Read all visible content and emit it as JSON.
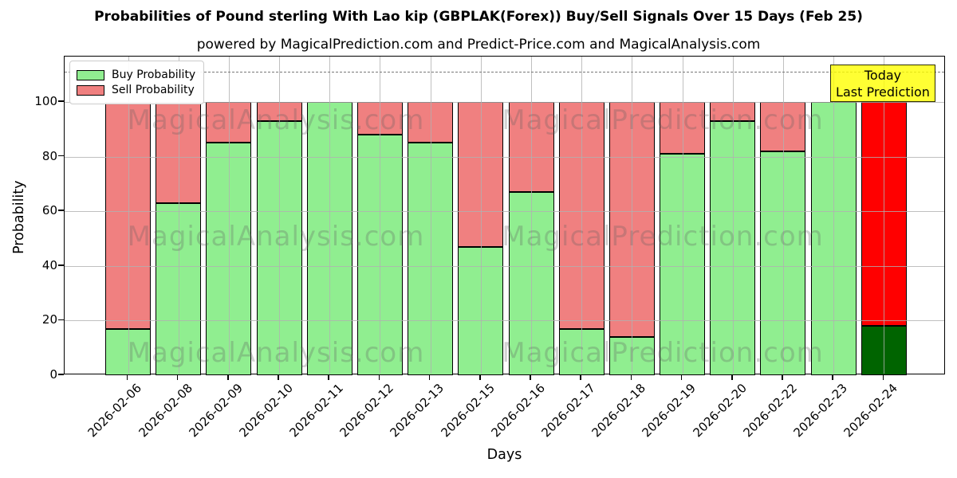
{
  "chart": {
    "title": "Probabilities of Pound sterling With Lao kip (GBPLAK(Forex)) Buy/Sell Signals Over 15 Days (Feb 25)",
    "subtitle": "powered by MagicalPrediction.com and Predict-Price.com and MagicalAnalysis.com",
    "xlabel": "Days",
    "ylabel": "Probability"
  },
  "legend": {
    "items": [
      {
        "label": "Buy Probability",
        "color": "#90EE90"
      },
      {
        "label": "Sell Probability",
        "color": "#F08080"
      }
    ]
  },
  "today_box": {
    "line1": "Today",
    "line2": "Last Prediction",
    "bg_color": "#FFFF00"
  },
  "watermarks": {
    "left_text": "MagicalAnalysis.com",
    "right_text": "MagicalPrediction.com"
  },
  "chart_data": {
    "type": "bar",
    "stacked": true,
    "title": "Probabilities of Pound sterling With Lao kip (GBPLAK(Forex)) Buy/Sell Signals Over 15 Days (Feb 25)",
    "xlabel": "Days",
    "ylabel": "Probability",
    "categories": [
      "2026-02-06",
      "2026-02-08",
      "2026-02-09",
      "2026-02-10",
      "2026-02-11",
      "2026-02-12",
      "2026-02-13",
      "2026-02-15",
      "2026-02-16",
      "2026-02-17",
      "2026-02-18",
      "2026-02-19",
      "2026-02-20",
      "2026-02-22",
      "2026-02-23",
      "2026-02-24"
    ],
    "series": [
      {
        "name": "Buy Probability",
        "color": "#90EE90",
        "values": [
          17,
          63,
          85,
          93,
          100,
          88,
          85,
          47,
          67,
          17,
          14,
          81,
          93,
          82,
          100,
          18
        ]
      },
      {
        "name": "Sell Probability",
        "color": "#F08080",
        "values": [
          83,
          37,
          15,
          7,
          0,
          12,
          15,
          53,
          33,
          83,
          86,
          19,
          7,
          18,
          0,
          82
        ]
      }
    ],
    "last_bar_colors": {
      "buy": "#006400",
      "sell": "#FF0000"
    },
    "yticks": [
      0,
      20,
      40,
      60,
      80,
      100
    ],
    "ylim": [
      0,
      116.6
    ],
    "dashed_line_y": 111,
    "grid": true,
    "legend_position": "upper left",
    "bar_edge_color": "#000000"
  }
}
